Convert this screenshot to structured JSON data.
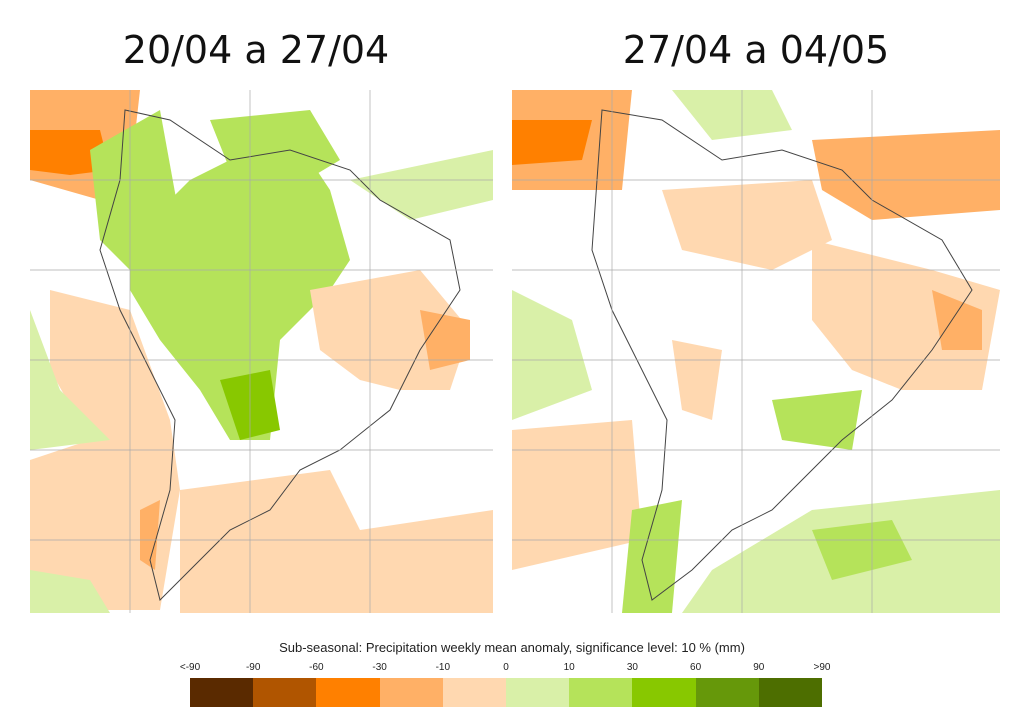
{
  "panels": [
    {
      "title": "20/04 a 27/04"
    },
    {
      "title": "27/04 a 04/05"
    }
  ],
  "legend": {
    "title": "Sub-seasonal: Precipitation weekly mean anomaly, significance level: 10 % (mm)",
    "ticks": [
      "<-90",
      "-90",
      "-60",
      "-30",
      "-10",
      "0",
      "10",
      "30",
      "60",
      "90",
      ">90"
    ],
    "colors": [
      "#5a2a00",
      "#b05500",
      "#ff8000",
      "#ffb066",
      "#ffd8b0",
      "#d9f0a8",
      "#b5e35a",
      "#88c800",
      "#66980a",
      "#4d6e00"
    ]
  }
}
